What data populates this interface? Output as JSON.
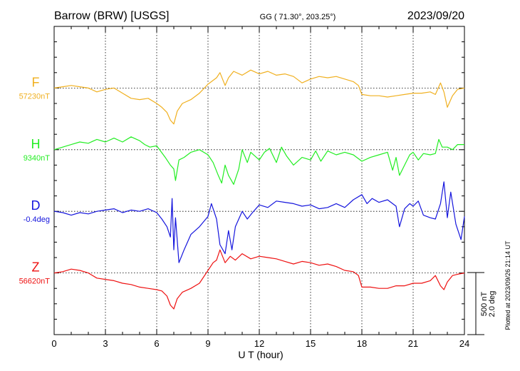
{
  "header": {
    "station": "Barrow (BRW)  [USGS]",
    "coords": "GG ( 71.30°, 203.25°)",
    "date": "2023/09/20"
  },
  "footer": {
    "plotted": "Plotted at 2023/09/26 21:14 UT"
  },
  "scale": {
    "nt": "500 nT",
    "deg": "2.0 deg"
  },
  "chart_data": {
    "type": "line",
    "xlabel": "U T (hour)",
    "xlim": [
      0,
      24
    ],
    "xticks": [
      "0",
      "3",
      "6",
      "9",
      "12",
      "15",
      "18",
      "21",
      "24"
    ],
    "grid": true,
    "series": [
      {
        "name": "F",
        "baseline": "57230nT",
        "color": "#f0b020",
        "x": [
          0,
          0.5,
          1,
          1.5,
          2,
          2.5,
          3,
          3.5,
          4,
          4.5,
          5,
          5.5,
          6,
          6.3,
          6.6,
          6.8,
          7,
          7.2,
          7.5,
          8,
          8.5,
          9,
          9.5,
          9.7,
          10,
          10.2,
          10.5,
          11,
          11.5,
          12,
          12.5,
          13,
          13.5,
          14,
          14.5,
          15,
          15.5,
          16,
          16.5,
          17,
          17.5,
          17.8,
          18,
          18.5,
          19,
          19.5,
          20,
          20.5,
          21,
          21.5,
          22,
          22.3,
          22.6,
          22.8,
          23,
          23.3,
          23.6,
          24
        ],
        "values": [
          0,
          10,
          20,
          10,
          0,
          -30,
          -10,
          0,
          -40,
          -80,
          -90,
          -80,
          -120,
          -150,
          -190,
          -250,
          -280,
          -180,
          -120,
          -90,
          -40,
          30,
          80,
          120,
          20,
          80,
          130,
          100,
          140,
          110,
          130,
          100,
          110,
          90,
          40,
          70,
          90,
          80,
          90,
          70,
          50,
          20,
          -50,
          -60,
          -60,
          -70,
          -60,
          -50,
          -40,
          -40,
          -30,
          -50,
          40,
          -30,
          -150,
          -60,
          -10,
          0
        ]
      },
      {
        "name": "H",
        "baseline": "9340nT",
        "color": "#22ee22",
        "x": [
          0,
          0.5,
          1,
          1.5,
          2,
          2.5,
          3,
          3.5,
          4,
          4.5,
          5,
          5.3,
          5.6,
          6,
          6.5,
          6.8,
          7,
          7.1,
          7.3,
          7.6,
          8,
          8.5,
          9,
          9.3,
          9.6,
          9.8,
          10,
          10.2,
          10.5,
          10.8,
          11,
          11.3,
          11.5,
          12,
          12.3,
          12.6,
          13,
          13.3,
          13.6,
          14,
          14.5,
          15,
          15.3,
          15.6,
          16,
          16.5,
          17,
          17.5,
          18,
          18.5,
          19,
          19.5,
          19.8,
          20,
          20.2,
          20.5,
          20.8,
          21,
          21.3,
          21.6,
          22,
          22.3,
          22.5,
          22.7,
          23,
          23.3,
          23.6,
          24
        ],
        "values": [
          0,
          20,
          40,
          60,
          50,
          80,
          60,
          90,
          60,
          100,
          70,
          40,
          20,
          30,
          -60,
          -120,
          -150,
          -240,
          -80,
          -60,
          -20,
          0,
          -40,
          -100,
          -200,
          -260,
          -120,
          -200,
          -270,
          -150,
          0,
          -100,
          -20,
          -80,
          -20,
          10,
          -100,
          20,
          -50,
          -120,
          -60,
          -80,
          -10,
          -90,
          -10,
          -40,
          -20,
          -40,
          -90,
          -60,
          -40,
          -20,
          -160,
          -60,
          -200,
          -120,
          -40,
          -20,
          -80,
          -30,
          -40,
          -30,
          80,
          20,
          20,
          0,
          40,
          40
        ]
      },
      {
        "name": "D",
        "baseline": "-0.4deg",
        "color": "#1515dd",
        "x": [
          0,
          0.5,
          1,
          1.5,
          2,
          2.5,
          3,
          3.5,
          4,
          4.5,
          5,
          5.5,
          6,
          6.3,
          6.6,
          6.8,
          6.9,
          7,
          7.1,
          7.3,
          7.6,
          8,
          8.5,
          9,
          9.2,
          9.5,
          9.7,
          10,
          10.2,
          10.4,
          10.6,
          11,
          11.3,
          11.6,
          12,
          12.5,
          13,
          13.5,
          14,
          14.5,
          15,
          15.5,
          16,
          16.5,
          17,
          17.5,
          18,
          18.3,
          18.6,
          19,
          19.5,
          20,
          20.2,
          20.5,
          20.8,
          21,
          21.3,
          21.6,
          22,
          22.3,
          22.6,
          22.8,
          23,
          23.2,
          23.5,
          23.8,
          24
        ],
        "values": [
          0,
          -10,
          -30,
          -10,
          -20,
          0,
          10,
          20,
          -10,
          10,
          0,
          20,
          -10,
          -60,
          -120,
          -200,
          100,
          -300,
          -50,
          -400,
          -300,
          -180,
          -120,
          -40,
          60,
          -60,
          -260,
          -330,
          -150,
          -300,
          -120,
          0,
          -60,
          -10,
          50,
          30,
          80,
          70,
          60,
          40,
          50,
          20,
          30,
          60,
          30,
          90,
          130,
          60,
          100,
          70,
          90,
          40,
          -120,
          20,
          60,
          40,
          80,
          -30,
          -50,
          -60,
          60,
          230,
          -50,
          150,
          -100,
          -220,
          -40
        ]
      },
      {
        "name": "Z",
        "baseline": "56620nT",
        "color": "#ee1111",
        "x": [
          0,
          0.5,
          1,
          1.5,
          2,
          2.5,
          3,
          3.5,
          4,
          4.5,
          5,
          5.5,
          6,
          6.3,
          6.6,
          6.8,
          7,
          7.2,
          7.5,
          8,
          8.5,
          9,
          9.3,
          9.5,
          9.7,
          10,
          10.3,
          10.6,
          11,
          11.5,
          12,
          12.5,
          13,
          13.5,
          14,
          14.5,
          15,
          15.5,
          16,
          16.5,
          17,
          17.5,
          17.8,
          18,
          18.5,
          19,
          19.5,
          20,
          20.5,
          21,
          21.5,
          22,
          22.3,
          22.6,
          22.8,
          23,
          23.3,
          23.6,
          24
        ],
        "values": [
          0,
          10,
          30,
          20,
          0,
          -40,
          -50,
          -60,
          -80,
          -90,
          -110,
          -120,
          -130,
          -140,
          -180,
          -250,
          -280,
          -200,
          -150,
          -120,
          -80,
          20,
          80,
          100,
          180,
          80,
          130,
          100,
          150,
          110,
          130,
          120,
          110,
          90,
          70,
          90,
          80,
          60,
          70,
          50,
          20,
          10,
          -20,
          -110,
          -110,
          -120,
          -120,
          -100,
          -100,
          -80,
          -80,
          -60,
          -20,
          -100,
          -130,
          -70,
          -20,
          -10,
          0
        ]
      }
    ]
  }
}
